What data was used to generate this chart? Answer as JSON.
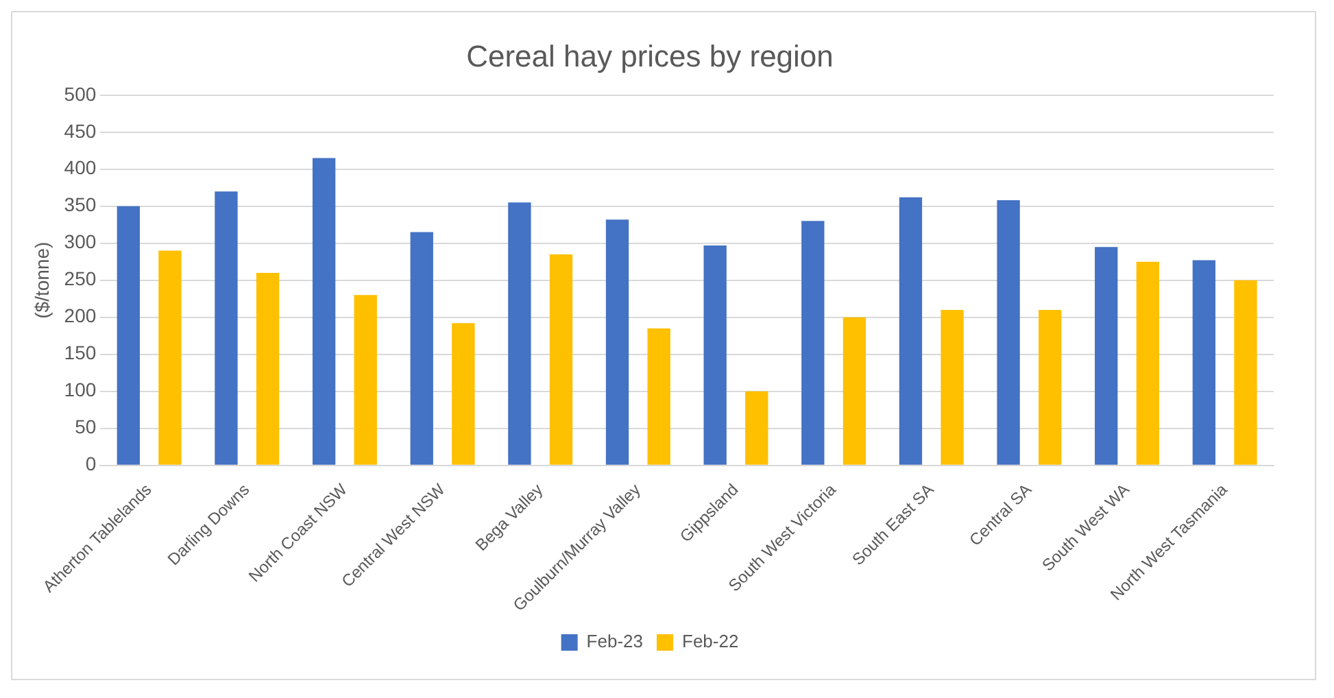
{
  "chart_data": {
    "type": "bar",
    "title": "Cereal hay prices by region",
    "ylabel": "($/tonne)",
    "categories": [
      "Atherton Tablelands",
      "Darling Downs",
      "North Coast NSW",
      "Central West NSW",
      "Bega Valley",
      "Goulburn/Murray Valley",
      "Gippsland",
      "South West Victoria",
      "South East SA",
      "Central SA",
      "South West WA",
      "North West Tasmania"
    ],
    "series": [
      {
        "name": "Feb-23",
        "color": "#4472c4",
        "values": [
          350,
          370,
          415,
          315,
          355,
          332,
          297,
          330,
          362,
          358,
          295,
          277
        ]
      },
      {
        "name": "Feb-22",
        "color": "#ffc000",
        "values": [
          290,
          260,
          230,
          192,
          285,
          185,
          100,
          200,
          210,
          210,
          275,
          250
        ]
      }
    ],
    "ylim": [
      0,
      500
    ],
    "yticks": [
      0,
      50,
      100,
      150,
      200,
      250,
      300,
      350,
      400,
      450,
      500
    ],
    "grid": "y",
    "legend": "bottom"
  }
}
